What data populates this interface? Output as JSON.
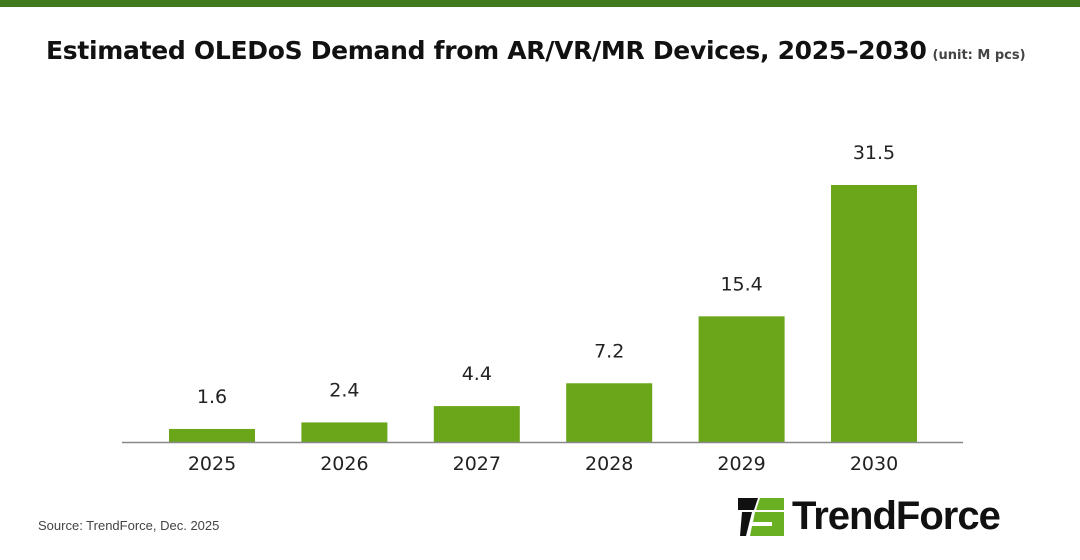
{
  "title": "Estimated OLEDoS Demand from AR/VR/MR Devices, 2025–2030",
  "unit": "(unit: M pcs)",
  "source": "Source: TrendForce, Dec. 2025",
  "logo": "TrendForce",
  "colors": {
    "top_bar": "#3f7a1e",
    "bar": "#6aa51a",
    "logo_green": "#6ab023"
  },
  "chart_data": {
    "type": "bar",
    "categories": [
      "2025",
      "2026",
      "2027",
      "2028",
      "2029",
      "2030"
    ],
    "values": [
      1.6,
      2.4,
      4.4,
      7.2,
      15.4,
      31.5
    ],
    "data_labels": [
      "1.6",
      "2.4",
      "4.4",
      "7.2",
      "15.4",
      "31.5"
    ],
    "title": "Estimated OLEDoS Demand from AR/VR/MR Devices, 2025–2030",
    "ylabel": "",
    "xlabel": "",
    "ylim": [
      0,
      31.5
    ],
    "grid": false,
    "legend": "none"
  }
}
